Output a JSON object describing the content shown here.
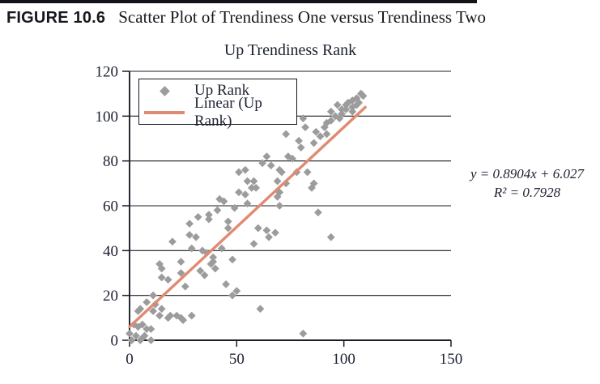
{
  "figure": {
    "label": "FIGURE 10.6",
    "caption": "Scatter Plot of Trendiness One versus Trendiness Two"
  },
  "chart_data": {
    "type": "scatter",
    "title": "Up Trendiness Rank",
    "xlabel": "",
    "ylabel": "",
    "xlim": [
      0,
      150
    ],
    "ylim": [
      0,
      120
    ],
    "x_ticks": [
      0,
      50,
      100,
      150
    ],
    "y_ticks": [
      0,
      20,
      40,
      60,
      80,
      100,
      120
    ],
    "grid": "horizontal",
    "legend_position": "upper-left-inside",
    "legend": [
      {
        "label": "Up Rank",
        "marker": "diamond",
        "color": "#9c9c9c"
      },
      {
        "label": "Linear (Up Rank)",
        "marker": "line",
        "color": "#e08a72"
      }
    ],
    "trendline": {
      "slope": 0.8904,
      "intercept": 6.027,
      "x_range": [
        0,
        110
      ],
      "color": "#e08a72"
    },
    "annotation": {
      "line1": "y = 0.8904x + 6.027",
      "line2": "R² = 0.7928"
    },
    "points": [
      [
        0,
        3
      ],
      [
        1,
        0
      ],
      [
        2,
        7
      ],
      [
        3,
        2
      ],
      [
        4,
        6
      ],
      [
        4,
        13
      ],
      [
        5,
        0
      ],
      [
        5,
        14
      ],
      [
        6,
        1
      ],
      [
        6,
        7
      ],
      [
        7,
        2
      ],
      [
        8,
        5
      ],
      [
        8,
        17
      ],
      [
        10,
        0
      ],
      [
        10,
        5
      ],
      [
        11,
        13
      ],
      [
        11,
        20
      ],
      [
        12,
        16
      ],
      [
        14,
        11
      ],
      [
        14,
        34
      ],
      [
        15,
        14
      ],
      [
        15,
        28
      ],
      [
        15,
        32
      ],
      [
        18,
        10
      ],
      [
        18,
        27
      ],
      [
        19,
        11
      ],
      [
        20,
        44
      ],
      [
        22,
        11
      ],
      [
        24,
        10
      ],
      [
        24,
        30
      ],
      [
        24,
        35
      ],
      [
        25,
        9
      ],
      [
        26,
        24
      ],
      [
        28,
        47
      ],
      [
        28,
        52
      ],
      [
        29,
        11
      ],
      [
        29,
        41
      ],
      [
        31,
        46
      ],
      [
        32,
        55
      ],
      [
        33,
        31
      ],
      [
        34,
        40
      ],
      [
        35,
        29
      ],
      [
        36,
        39
      ],
      [
        37,
        54
      ],
      [
        37,
        56
      ],
      [
        38,
        34
      ],
      [
        39,
        35
      ],
      [
        39,
        37
      ],
      [
        40,
        32
      ],
      [
        41,
        58
      ],
      [
        42,
        63
      ],
      [
        43,
        41
      ],
      [
        44,
        62
      ],
      [
        45,
        25
      ],
      [
        46,
        50
      ],
      [
        46,
        53
      ],
      [
        48,
        20
      ],
      [
        48,
        36
      ],
      [
        49,
        59
      ],
      [
        50,
        22
      ],
      [
        51,
        66
      ],
      [
        51,
        75
      ],
      [
        54,
        65
      ],
      [
        54,
        76
      ],
      [
        55,
        61
      ],
      [
        55,
        71
      ],
      [
        57,
        68
      ],
      [
        58,
        43
      ],
      [
        58,
        71
      ],
      [
        59,
        68
      ],
      [
        60,
        50
      ],
      [
        61,
        14
      ],
      [
        62,
        79
      ],
      [
        64,
        49
      ],
      [
        64,
        82
      ],
      [
        65,
        46
      ],
      [
        66,
        78
      ],
      [
        68,
        48
      ],
      [
        69,
        64
      ],
      [
        69,
        71
      ],
      [
        70,
        60
      ],
      [
        70,
        66
      ],
      [
        70,
        76
      ],
      [
        71,
        75
      ],
      [
        73,
        70
      ],
      [
        73,
        92
      ],
      [
        74,
        82
      ],
      [
        76,
        81
      ],
      [
        78,
        75
      ],
      [
        79,
        89
      ],
      [
        80,
        86
      ],
      [
        81,
        3
      ],
      [
        81,
        99
      ],
      [
        82,
        95
      ],
      [
        83,
        75
      ],
      [
        85,
        68
      ],
      [
        86,
        70
      ],
      [
        86,
        88
      ],
      [
        87,
        93
      ],
      [
        88,
        57
      ],
      [
        89,
        91
      ],
      [
        91,
        95
      ],
      [
        92,
        92
      ],
      [
        92,
        97
      ],
      [
        94,
        46
      ],
      [
        94,
        98
      ],
      [
        94,
        102
      ],
      [
        96,
        100
      ],
      [
        97,
        105
      ],
      [
        98,
        99
      ],
      [
        99,
        101
      ],
      [
        99,
        103
      ],
      [
        101,
        103
      ],
      [
        101,
        105
      ],
      [
        102,
        106
      ],
      [
        104,
        102
      ],
      [
        104,
        104
      ],
      [
        104,
        107
      ],
      [
        106,
        105
      ],
      [
        106,
        108
      ],
      [
        107,
        106
      ],
      [
        108,
        110
      ],
      [
        109,
        109
      ]
    ]
  }
}
